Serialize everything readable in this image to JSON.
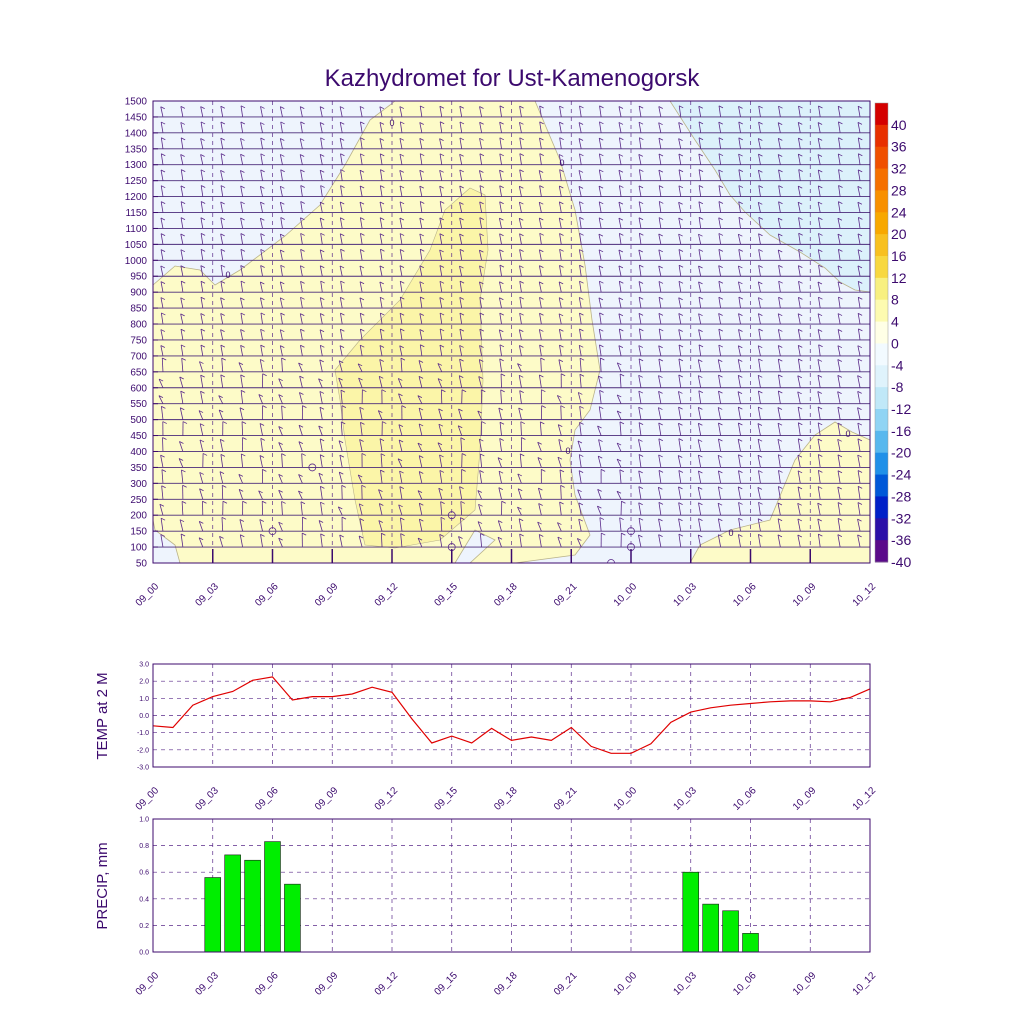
{
  "title": "Kazhydromet for Ust-Kamenogorsk",
  "colors": {
    "frame": "#3c0a6e",
    "temp_line": "#e00000",
    "precip_bar": "#00ee00",
    "barb": "#5a2a8a"
  },
  "time_labels": [
    "09_00",
    "09_03",
    "09_06",
    "09_09",
    "09_12",
    "09_15",
    "09_18",
    "09_21",
    "10_00",
    "10_03",
    "10_06",
    "10_09",
    "10_12"
  ],
  "chart_data": [
    {
      "type": "heatmap",
      "title": "Kazhydromet for Ust-Kamenogorsk",
      "x_range_hours": [
        0,
        36
      ],
      "ylim": [
        50,
        1500
      ],
      "y_ticks": [
        50,
        100,
        150,
        200,
        250,
        300,
        350,
        400,
        450,
        500,
        550,
        600,
        650,
        700,
        750,
        800,
        850,
        900,
        950,
        1000,
        1050,
        1100,
        1150,
        1200,
        1250,
        1300,
        1350,
        1400,
        1450,
        1500
      ],
      "contour_labels": [
        "0",
        "0",
        "0",
        "0",
        "0"
      ],
      "colorbar": {
        "labels": [
          "40",
          "36",
          "32",
          "28",
          "24",
          "20",
          "16",
          "12",
          "8",
          "4",
          "0",
          "-4",
          "-8",
          "-12",
          "-16",
          "-20",
          "-24",
          "-28",
          "-32",
          "-36",
          "-40"
        ],
        "colors": [
          "#d40000",
          "#e83000",
          "#f05000",
          "#f57000",
          "#f89000",
          "#f8a800",
          "#f8c020",
          "#f8d840",
          "#f8f080",
          "#fdfbb0",
          "#ffffe6",
          "#f2faff",
          "#dff3fc",
          "#c0e8f8",
          "#90d4f4",
          "#58b8ee",
          "#2090e8",
          "#0058d8",
          "#0020c8",
          "#2a10a8",
          "#5a0a8a"
        ]
      }
    },
    {
      "type": "line",
      "ylabel": "TEMP at 2 M",
      "ylim": [
        -3,
        3
      ],
      "y_ticks": [
        "3.0",
        "2.0",
        "1.0",
        "0.0",
        "-1.0",
        "-2.0",
        "-3.0"
      ],
      "x_hours": [
        0,
        1,
        2,
        3,
        4,
        5,
        6,
        7,
        8,
        9,
        10,
        11,
        12,
        13,
        14,
        15,
        16,
        17,
        18,
        19,
        20,
        21,
        22,
        23,
        24,
        25,
        26,
        27,
        28,
        29,
        30,
        31,
        32,
        33,
        34,
        35,
        36
      ],
      "values": [
        -0.6,
        -0.7,
        0.6,
        1.1,
        1.4,
        2.05,
        2.25,
        0.9,
        1.1,
        1.1,
        1.25,
        1.65,
        1.35,
        -0.2,
        -1.6,
        -1.2,
        -1.6,
        -0.75,
        -1.45,
        -1.25,
        -1.45,
        -0.7,
        -1.8,
        -2.2,
        -2.2,
        -1.65,
        -0.4,
        0.2,
        0.45,
        0.6,
        0.7,
        0.8,
        0.85,
        0.85,
        0.8,
        1.05,
        1.55
      ]
    },
    {
      "type": "bar",
      "ylabel": "PRECIP, mm",
      "ylim": [
        0,
        1
      ],
      "y_ticks": [
        "1.0",
        "0.8",
        "0.6",
        "0.4",
        "0.2",
        "0.0"
      ],
      "x_hours": [
        3,
        4,
        5,
        6,
        7,
        27,
        28,
        29,
        30
      ],
      "values": [
        0.56,
        0.73,
        0.69,
        0.83,
        0.51,
        0.6,
        0.36,
        0.31,
        0.14
      ]
    }
  ]
}
